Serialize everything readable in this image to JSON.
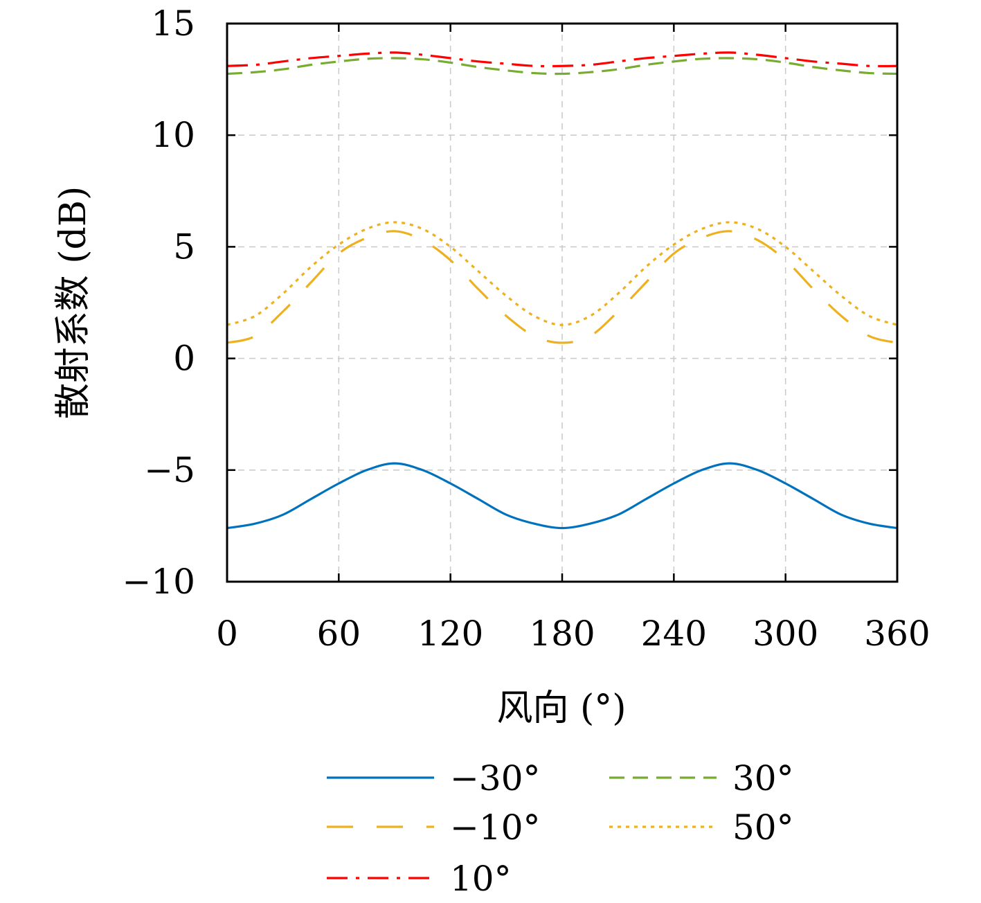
{
  "chart_data": {
    "type": "line",
    "title": "",
    "xlabel": "风向 (°)",
    "ylabel": "散射系数 (dB)",
    "xlim": [
      0,
      360
    ],
    "ylim": [
      -10,
      15
    ],
    "xticks": [
      0,
      60,
      120,
      180,
      240,
      300,
      360
    ],
    "yticks": [
      -10,
      -5,
      0,
      5,
      10,
      15
    ],
    "xtick_labels": [
      "0",
      "60",
      "120",
      "180",
      "240",
      "300",
      "360"
    ],
    "ytick_labels": [
      "−10",
      "−5",
      "0",
      "5",
      "10",
      "15"
    ],
    "grid": true,
    "legend": "bottom",
    "x": [
      0,
      15,
      30,
      45,
      60,
      75,
      90,
      105,
      120,
      135,
      150,
      165,
      180,
      195,
      210,
      225,
      240,
      255,
      270,
      285,
      300,
      315,
      330,
      345,
      360
    ],
    "series": [
      {
        "name": "−30°",
        "color": "#0072bd",
        "dash": "solid",
        "values": [
          -7.6,
          -7.4,
          -7.0,
          -6.3,
          -5.6,
          -5.0,
          -4.7,
          -5.0,
          -5.6,
          -6.3,
          -7.0,
          -7.4,
          -7.6,
          -7.4,
          -7.0,
          -6.3,
          -5.6,
          -5.0,
          -4.7,
          -5.0,
          -5.6,
          -6.3,
          -7.0,
          -7.4,
          -7.6
        ]
      },
      {
        "name": "−10°",
        "color": "#edb120",
        "dash": "longdash",
        "values": [
          0.7,
          1.0,
          2.1,
          3.4,
          4.7,
          5.4,
          5.7,
          5.3,
          4.4,
          3.1,
          1.9,
          1.0,
          0.7,
          1.0,
          2.1,
          3.4,
          4.7,
          5.4,
          5.7,
          5.3,
          4.4,
          3.1,
          1.9,
          1.0,
          0.7
        ]
      },
      {
        "name": "10°",
        "color": "#ff0000",
        "dash": "dashdot",
        "values": [
          13.1,
          13.15,
          13.3,
          13.45,
          13.55,
          13.65,
          13.7,
          13.6,
          13.45,
          13.3,
          13.2,
          13.1,
          13.1,
          13.15,
          13.3,
          13.45,
          13.55,
          13.65,
          13.7,
          13.6,
          13.45,
          13.3,
          13.2,
          13.1,
          13.1
        ]
      },
      {
        "name": "30°",
        "color": "#77ac30",
        "dash": "dash",
        "values": [
          12.75,
          12.82,
          12.95,
          13.15,
          13.3,
          13.42,
          13.45,
          13.4,
          13.25,
          13.05,
          12.9,
          12.78,
          12.75,
          12.82,
          12.95,
          13.15,
          13.3,
          13.42,
          13.45,
          13.4,
          13.25,
          13.05,
          12.9,
          12.78,
          12.75
        ]
      },
      {
        "name": "50°",
        "color": "#edb120",
        "dash": "dot",
        "values": [
          1.5,
          1.9,
          2.9,
          4.1,
          5.1,
          5.8,
          6.1,
          5.8,
          5.0,
          3.9,
          2.8,
          1.9,
          1.5,
          1.9,
          2.9,
          4.1,
          5.1,
          5.8,
          6.1,
          5.8,
          5.0,
          3.9,
          2.8,
          1.9,
          1.5
        ]
      }
    ]
  }
}
